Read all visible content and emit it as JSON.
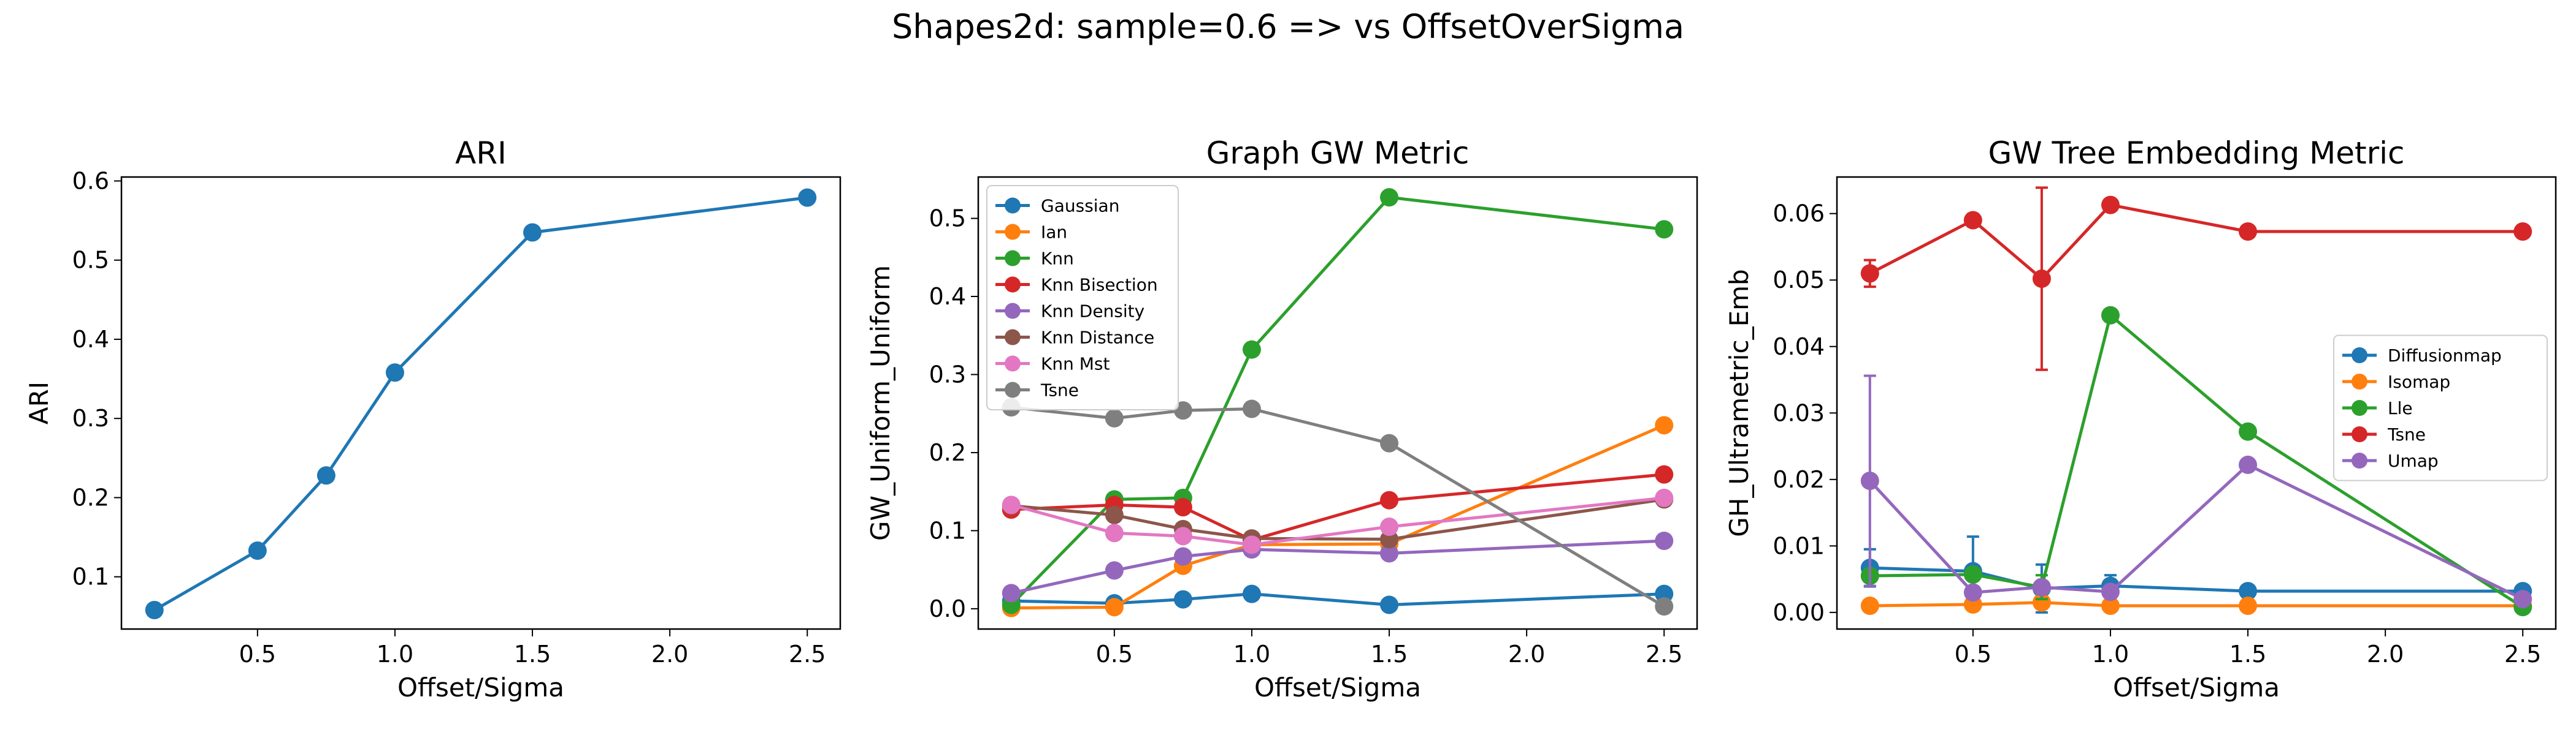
{
  "suptitle": "Shapes2d: sample=0.6 => vs OffsetOverSigma",
  "chart_data": [
    {
      "type": "line",
      "title": "ARI",
      "xlabel": "Offset/Sigma",
      "ylabel": "ARI",
      "xlim": [
        0.005,
        2.62
      ],
      "ylim": [
        0.034,
        0.605
      ],
      "xticks": [
        0.5,
        1.0,
        1.5,
        2.0,
        2.5
      ],
      "xtick_labels": [
        "0.5",
        "1.0",
        "1.5",
        "2.0",
        "2.5"
      ],
      "yticks": [
        0.1,
        0.2,
        0.3,
        0.4,
        0.5,
        0.6
      ],
      "ytick_labels": [
        "0.1",
        "0.2",
        "0.3",
        "0.4",
        "0.5",
        "0.6"
      ],
      "legend": null,
      "series": [
        {
          "color": "#1f77b4",
          "x": [
            0.125,
            0.5,
            0.75,
            1.0,
            1.5,
            2.5
          ],
          "y": [
            0.058,
            0.133,
            0.228,
            0.358,
            0.535,
            0.579
          ]
        }
      ]
    },
    {
      "type": "line",
      "title": "Graph GW Metric",
      "xlabel": "Offset/Sigma",
      "ylabel": "GW_Uniform_Uniform",
      "xlim": [
        0.005,
        2.62
      ],
      "ylim": [
        -0.026,
        0.553
      ],
      "xticks": [
        0.5,
        1.0,
        1.5,
        2.0,
        2.5
      ],
      "xtick_labels": [
        "0.5",
        "1.0",
        "1.5",
        "2.0",
        "2.5"
      ],
      "yticks": [
        0.0,
        0.1,
        0.2,
        0.3,
        0.4,
        0.5
      ],
      "ytick_labels": [
        "0.0",
        "0.1",
        "0.2",
        "0.3",
        "0.4",
        "0.5"
      ],
      "legend": "upper-left",
      "series": [
        {
          "name": "Gaussian",
          "color": "#1f77b4",
          "x": [
            0.125,
            0.5,
            0.75,
            1.0,
            1.5,
            2.5
          ],
          "y": [
            0.01,
            0.007,
            0.012,
            0.019,
            0.005,
            0.019
          ]
        },
        {
          "name": "Ian",
          "color": "#ff7f0e",
          "x": [
            0.125,
            0.5,
            0.75,
            1.0,
            1.5,
            2.5
          ],
          "y": [
            0.001,
            0.002,
            0.055,
            0.082,
            0.083,
            0.235
          ]
        },
        {
          "name": "Knn",
          "color": "#2ca02c",
          "x": [
            0.125,
            0.5,
            0.75,
            1.0,
            1.5,
            2.5
          ],
          "y": [
            0.005,
            0.14,
            0.142,
            0.332,
            0.527,
            0.486
          ]
        },
        {
          "name": "Knn Bisection",
          "color": "#d62728",
          "x": [
            0.125,
            0.5,
            0.75,
            1.0,
            1.5,
            2.5
          ],
          "y": [
            0.127,
            0.133,
            0.13,
            0.088,
            0.139,
            0.172
          ]
        },
        {
          "name": "Knn Density",
          "color": "#9467bd",
          "x": [
            0.125,
            0.5,
            0.75,
            1.0,
            1.5,
            2.5
          ],
          "y": [
            0.02,
            0.049,
            0.067,
            0.076,
            0.071,
            0.087
          ]
        },
        {
          "name": "Knn Distance",
          "color": "#8c564b",
          "x": [
            0.125,
            0.5,
            0.75,
            1.0,
            1.5,
            2.5
          ],
          "y": [
            0.132,
            0.12,
            0.102,
            0.09,
            0.089,
            0.14
          ]
        },
        {
          "name": "Knn Mst",
          "color": "#e377c2",
          "x": [
            0.125,
            0.5,
            0.75,
            1.0,
            1.5,
            2.5
          ],
          "y": [
            0.133,
            0.097,
            0.093,
            0.082,
            0.105,
            0.142
          ]
        },
        {
          "name": "Tsne",
          "color": "#7f7f7f",
          "x": [
            0.125,
            0.5,
            0.75,
            1.0,
            1.5,
            2.5
          ],
          "y": [
            0.258,
            0.244,
            0.254,
            0.256,
            0.212,
            0.003
          ]
        }
      ]
    },
    {
      "type": "line",
      "title": "GW Tree Embedding Metric",
      "xlabel": "Offset/Sigma",
      "ylabel": "GH_Ultrametric_Emb",
      "xlim": [
        0.005,
        2.62
      ],
      "ylim": [
        -0.0025,
        0.0655
      ],
      "xticks": [
        0.5,
        1.0,
        1.5,
        2.0,
        2.5
      ],
      "xtick_labels": [
        "0.5",
        "1.0",
        "1.5",
        "2.0",
        "2.5"
      ],
      "yticks": [
        0.0,
        0.01,
        0.02,
        0.03,
        0.04,
        0.05,
        0.06
      ],
      "ytick_labels": [
        "0.00",
        "0.01",
        "0.02",
        "0.03",
        "0.04",
        "0.05",
        "0.06"
      ],
      "legend": "center-right",
      "series": [
        {
          "name": "Diffusionmap",
          "color": "#1f77b4",
          "x": [
            0.125,
            0.5,
            0.75,
            1.0,
            1.5,
            2.5
          ],
          "y": [
            0.0067,
            0.0062,
            0.0036,
            0.004,
            0.0032,
            0.0032
          ],
          "yerr": [
            0.0028,
            0.0052,
            0.0036,
            0.0016,
            0,
            0
          ]
        },
        {
          "name": "Isomap",
          "color": "#ff7f0e",
          "x": [
            0.125,
            0.5,
            0.75,
            1.0,
            1.5,
            2.5
          ],
          "y": [
            0.001,
            0.0012,
            0.0015,
            0.001,
            0.001,
            0.001
          ],
          "yerr": [
            0.0003,
            0.0003,
            0.0009,
            0.0003,
            0,
            0
          ]
        },
        {
          "name": "Lle",
          "color": "#2ca02c",
          "x": [
            0.125,
            0.5,
            0.75,
            1.0,
            1.5,
            2.5
          ],
          "y": [
            0.0055,
            0.0057,
            0.0038,
            0.0447,
            0.0272,
            0.0008
          ],
          "yerr": [
            0.0005,
            0.0005,
            0.0018,
            0.0004,
            0.0003,
            0.0001
          ]
        },
        {
          "name": "Tsne",
          "color": "#d62728",
          "x": [
            0.125,
            0.5,
            0.75,
            1.0,
            1.5,
            2.5
          ],
          "y": [
            0.051,
            0.059,
            0.0502,
            0.0613,
            0.0573,
            0.0573
          ],
          "yerr": [
            0.002,
            0.0009,
            0.0137,
            0.0003,
            0,
            0
          ]
        },
        {
          "name": "Umap",
          "color": "#9467bd",
          "x": [
            0.125,
            0.5,
            0.75,
            1.0,
            1.5,
            2.5
          ],
          "y": [
            0.0198,
            0.003,
            0.0038,
            0.0031,
            0.0222,
            0.002
          ],
          "yerr": [
            0.0158,
            0.0003,
            0.0005,
            0.0002,
            0.0004,
            0.0002
          ]
        }
      ]
    }
  ]
}
